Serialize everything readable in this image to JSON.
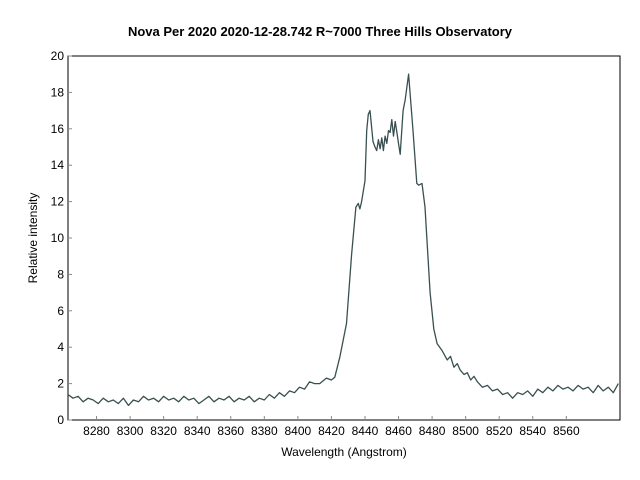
{
  "chart_data": {
    "type": "line",
    "title": "Nova Per 2020   2020-12-28.742   R~7000  Three Hills Observatory",
    "xlabel": "Wavelength (Angstrom)",
    "ylabel": "Relative intensity",
    "xlim": [
      8263,
      8592
    ],
    "ylim": [
      0,
      20
    ],
    "xticks": [
      8280,
      8300,
      8320,
      8340,
      8360,
      8380,
      8400,
      8420,
      8440,
      8460,
      8480,
      8500,
      8520,
      8540,
      8560
    ],
    "yticks": [
      0,
      2,
      4,
      6,
      8,
      10,
      12,
      14,
      16,
      18,
      20
    ],
    "grid": false,
    "line_color": "#3a5050",
    "series": [
      {
        "points": [
          [
            8263,
            1.4
          ],
          [
            8266,
            1.2
          ],
          [
            8269,
            1.3
          ],
          [
            8272,
            1.0
          ],
          [
            8275,
            1.2
          ],
          [
            8278,
            1.1
          ],
          [
            8281,
            0.9
          ],
          [
            8284,
            1.2
          ],
          [
            8287,
            1.0
          ],
          [
            8290,
            1.1
          ],
          [
            8293,
            0.9
          ],
          [
            8296,
            1.2
          ],
          [
            8299,
            0.8
          ],
          [
            8302,
            1.1
          ],
          [
            8305,
            1.0
          ],
          [
            8308,
            1.3
          ],
          [
            8311,
            1.1
          ],
          [
            8314,
            1.2
          ],
          [
            8317,
            1.0
          ],
          [
            8320,
            1.3
          ],
          [
            8323,
            1.1
          ],
          [
            8326,
            1.2
          ],
          [
            8329,
            1.0
          ],
          [
            8332,
            1.3
          ],
          [
            8335,
            1.1
          ],
          [
            8338,
            1.2
          ],
          [
            8341,
            0.9
          ],
          [
            8344,
            1.1
          ],
          [
            8347,
            1.3
          ],
          [
            8350,
            1.0
          ],
          [
            8353,
            1.2
          ],
          [
            8356,
            1.1
          ],
          [
            8359,
            1.3
          ],
          [
            8362,
            1.0
          ],
          [
            8365,
            1.2
          ],
          [
            8368,
            1.1
          ],
          [
            8371,
            1.3
          ],
          [
            8374,
            1.0
          ],
          [
            8377,
            1.2
          ],
          [
            8380,
            1.1
          ],
          [
            8383,
            1.4
          ],
          [
            8386,
            1.2
          ],
          [
            8389,
            1.5
          ],
          [
            8392,
            1.3
          ],
          [
            8395,
            1.6
          ],
          [
            8398,
            1.5
          ],
          [
            8401,
            1.8
          ],
          [
            8404,
            1.7
          ],
          [
            8407,
            2.1
          ],
          [
            8410,
            2.0
          ],
          [
            8413,
            2.0
          ],
          [
            8417,
            2.3
          ],
          [
            8420,
            2.2
          ],
          [
            8422,
            2.35
          ],
          [
            8425,
            3.45
          ],
          [
            8429,
            5.3
          ],
          [
            8432,
            9.1
          ],
          [
            8434.6,
            11.7
          ],
          [
            8436,
            11.9
          ],
          [
            8437,
            11.6
          ],
          [
            8438,
            12.0
          ],
          [
            8440,
            13.15
          ],
          [
            8441,
            15.9
          ],
          [
            8442,
            16.8
          ],
          [
            8443,
            17.0
          ],
          [
            8444.8,
            15.3
          ],
          [
            8446,
            15.0
          ],
          [
            8447,
            14.8
          ],
          [
            8448,
            15.4
          ],
          [
            8449,
            14.9
          ],
          [
            8450,
            15.5
          ],
          [
            8451,
            14.8
          ],
          [
            8452,
            15.6
          ],
          [
            8453,
            15.2
          ],
          [
            8454,
            15.9
          ],
          [
            8455,
            15.8
          ],
          [
            8456,
            16.5
          ],
          [
            8457,
            15.6
          ],
          [
            8458,
            16.4
          ],
          [
            8459,
            15.8
          ],
          [
            8460,
            15.2
          ],
          [
            8461,
            14.6
          ],
          [
            8462.7,
            17.0
          ],
          [
            8464,
            17.6
          ],
          [
            8466,
            19.0
          ],
          [
            8467,
            17.8
          ],
          [
            8468.6,
            15.9
          ],
          [
            8470.9,
            13.0
          ],
          [
            8472,
            12.9
          ],
          [
            8474,
            13.0
          ],
          [
            8475.8,
            11.7
          ],
          [
            8478.8,
            7.0
          ],
          [
            8481,
            5.0
          ],
          [
            8483,
            4.2
          ],
          [
            8486,
            3.8
          ],
          [
            8489,
            3.3
          ],
          [
            8491,
            3.5
          ],
          [
            8493,
            2.9
          ],
          [
            8495,
            3.1
          ],
          [
            8496.7,
            2.75
          ],
          [
            8499,
            2.5
          ],
          [
            8501,
            2.6
          ],
          [
            8503,
            2.2
          ],
          [
            8505,
            2.4
          ],
          [
            8507,
            2.1
          ],
          [
            8510,
            1.8
          ],
          [
            8513,
            1.9
          ],
          [
            8516,
            1.6
          ],
          [
            8519,
            1.7
          ],
          [
            8522,
            1.4
          ],
          [
            8525,
            1.5
          ],
          [
            8528,
            1.2
          ],
          [
            8531,
            1.5
          ],
          [
            8534,
            1.4
          ],
          [
            8537,
            1.6
          ],
          [
            8540,
            1.3
          ],
          [
            8543,
            1.7
          ],
          [
            8546,
            1.5
          ],
          [
            8549,
            1.8
          ],
          [
            8552,
            1.6
          ],
          [
            8555,
            1.9
          ],
          [
            8558,
            1.7
          ],
          [
            8561,
            1.8
          ],
          [
            8564,
            1.6
          ],
          [
            8567,
            1.9
          ],
          [
            8570,
            1.7
          ],
          [
            8573,
            1.8
          ],
          [
            8576,
            1.5
          ],
          [
            8579,
            1.9
          ],
          [
            8582,
            1.6
          ],
          [
            8585,
            1.8
          ],
          [
            8588,
            1.5
          ],
          [
            8591,
            2.0
          ]
        ]
      }
    ]
  }
}
